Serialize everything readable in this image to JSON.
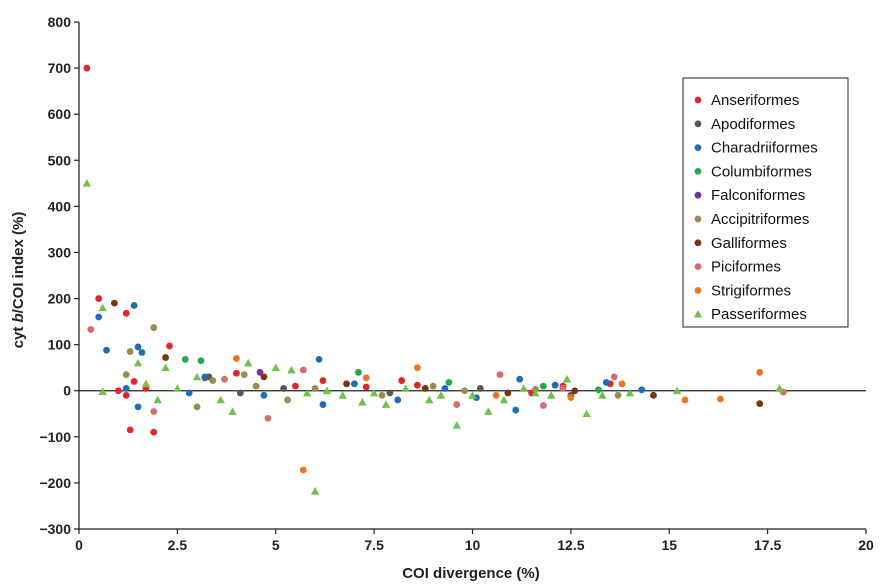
{
  "chart_data": {
    "type": "scatter",
    "xlabel": "COI divergence (%)",
    "ylabel_parts": [
      "cyt ",
      "b",
      "/COI index (%)"
    ],
    "xlim": [
      0,
      20
    ],
    "ylim": [
      -300,
      800
    ],
    "x_ticks": [
      "0",
      "2.5",
      "5",
      "7.5",
      "10",
      "12.5",
      "15",
      "17.5",
      "20"
    ],
    "y_ticks": [
      "800",
      "700",
      "600",
      "500",
      "400",
      "300",
      "200",
      "100",
      "0",
      "−100",
      "−200",
      "−300"
    ],
    "grid": false,
    "zero_line": true,
    "legend_position": "right",
    "series": [
      {
        "name": "Anseriformes",
        "color": "#e3262a",
        "marker": "circle",
        "points": [
          [
            0.2,
            700
          ],
          [
            0.5,
            200
          ],
          [
            1.2,
            168
          ],
          [
            2.3,
            97
          ],
          [
            1.0,
            0
          ],
          [
            1.4,
            20
          ],
          [
            1.3,
            -85
          ],
          [
            1.9,
            -90
          ],
          [
            1.2,
            -10
          ],
          [
            1.7,
            5
          ],
          [
            3.2,
            28
          ],
          [
            4.0,
            38
          ],
          [
            5.5,
            10
          ],
          [
            6.2,
            22
          ],
          [
            7.3,
            8
          ],
          [
            8.2,
            22
          ],
          [
            8.6,
            12
          ],
          [
            11.5,
            -5
          ],
          [
            12.3,
            10
          ],
          [
            13.5,
            15
          ]
        ]
      },
      {
        "name": "Apodiformes",
        "color": "#575757",
        "marker": "circle",
        "points": [
          [
            3.3,
            30
          ],
          [
            4.1,
            -5
          ],
          [
            5.2,
            5
          ],
          [
            7.9,
            -5
          ],
          [
            10.2,
            5
          ],
          [
            12.5,
            -10
          ]
        ]
      },
      {
        "name": "Charadriiformes",
        "color": "#1f6db5",
        "marker": "circle",
        "points": [
          [
            0.5,
            160
          ],
          [
            1.4,
            185
          ],
          [
            0.7,
            88
          ],
          [
            1.6,
            83
          ],
          [
            1.5,
            95
          ],
          [
            1.5,
            -35
          ],
          [
            1.2,
            5
          ],
          [
            2.8,
            -5
          ],
          [
            3.2,
            30
          ],
          [
            4.7,
            -10
          ],
          [
            6.1,
            68
          ],
          [
            6.2,
            -30
          ],
          [
            7.0,
            15
          ],
          [
            8.1,
            -20
          ],
          [
            9.3,
            5
          ],
          [
            10.1,
            -15
          ],
          [
            11.2,
            25
          ],
          [
            11.1,
            -42
          ],
          [
            12.1,
            12
          ],
          [
            13.4,
            18
          ],
          [
            14.3,
            2
          ]
        ]
      },
      {
        "name": "Columbiformes",
        "color": "#21a84c",
        "marker": "circle",
        "points": [
          [
            2.7,
            68
          ],
          [
            3.1,
            65
          ],
          [
            7.1,
            40
          ],
          [
            9.4,
            18
          ],
          [
            11.8,
            10
          ],
          [
            13.2,
            2
          ]
        ]
      },
      {
        "name": "Falconiformes",
        "color": "#7030a0",
        "marker": "circle",
        "points": [
          [
            4.6,
            40
          ]
        ]
      },
      {
        "name": "Accipitriformes",
        "color": "#9b8b4e",
        "marker": "circle",
        "points": [
          [
            1.9,
            137
          ],
          [
            1.3,
            85
          ],
          [
            1.2,
            35
          ],
          [
            3.0,
            -35
          ],
          [
            3.4,
            22
          ],
          [
            4.2,
            35
          ],
          [
            4.5,
            10
          ],
          [
            5.3,
            -20
          ],
          [
            6.0,
            5
          ],
          [
            7.7,
            -10
          ],
          [
            9.0,
            10
          ],
          [
            9.8,
            0
          ],
          [
            11.6,
            3
          ],
          [
            13.7,
            -10
          ]
        ]
      },
      {
        "name": "Galliformes",
        "color": "#7b3410",
        "marker": "circle",
        "points": [
          [
            0.9,
            190
          ],
          [
            2.2,
            72
          ],
          [
            4.7,
            30
          ],
          [
            6.8,
            15
          ],
          [
            8.8,
            5
          ],
          [
            10.9,
            -5
          ],
          [
            12.6,
            0
          ],
          [
            14.6,
            -10
          ],
          [
            17.3,
            -28
          ]
        ]
      },
      {
        "name": "Piciformes",
        "color": "#d86b6b",
        "marker": "circle",
        "points": [
          [
            0.3,
            133
          ],
          [
            1.9,
            -45
          ],
          [
            3.7,
            25
          ],
          [
            4.8,
            -60
          ],
          [
            5.7,
            45
          ],
          [
            9.6,
            -30
          ],
          [
            10.7,
            35
          ],
          [
            11.8,
            -32
          ],
          [
            12.3,
            5
          ],
          [
            13.6,
            30
          ],
          [
            17.9,
            -3
          ]
        ]
      },
      {
        "name": "Strigiformes",
        "color": "#e87722",
        "marker": "circle",
        "points": [
          [
            4.0,
            70
          ],
          [
            5.7,
            -172
          ],
          [
            8.6,
            50
          ],
          [
            7.3,
            28
          ],
          [
            10.6,
            -10
          ],
          [
            12.5,
            -15
          ],
          [
            13.8,
            15
          ],
          [
            15.4,
            -20
          ],
          [
            16.3,
            -18
          ],
          [
            17.3,
            40
          ]
        ]
      },
      {
        "name": "Passeriformes",
        "color": "#6cc24a",
        "marker": "triangle",
        "points": [
          [
            0.2,
            450
          ],
          [
            0.6,
            -2
          ],
          [
            0.6,
            180
          ],
          [
            1.5,
            60
          ],
          [
            1.7,
            15
          ],
          [
            2.0,
            -20
          ],
          [
            2.2,
            50
          ],
          [
            2.5,
            5
          ],
          [
            3.0,
            30
          ],
          [
            3.6,
            -20
          ],
          [
            3.9,
            -45
          ],
          [
            4.3,
            60
          ],
          [
            5.0,
            50
          ],
          [
            5.4,
            45
          ],
          [
            5.8,
            -5
          ],
          [
            6.0,
            -218
          ],
          [
            6.3,
            0
          ],
          [
            6.7,
            -10
          ],
          [
            7.2,
            -25
          ],
          [
            7.5,
            -5
          ],
          [
            7.8,
            -30
          ],
          [
            8.3,
            5
          ],
          [
            8.9,
            -20
          ],
          [
            9.2,
            -10
          ],
          [
            9.6,
            -75
          ],
          [
            10.0,
            -10
          ],
          [
            10.4,
            -45
          ],
          [
            10.8,
            -20
          ],
          [
            11.3,
            5
          ],
          [
            11.6,
            -5
          ],
          [
            12.0,
            -10
          ],
          [
            12.4,
            25
          ],
          [
            12.9,
            -50
          ],
          [
            13.3,
            -10
          ],
          [
            14.0,
            -5
          ],
          [
            15.2,
            0
          ],
          [
            17.8,
            5
          ]
        ]
      }
    ]
  }
}
